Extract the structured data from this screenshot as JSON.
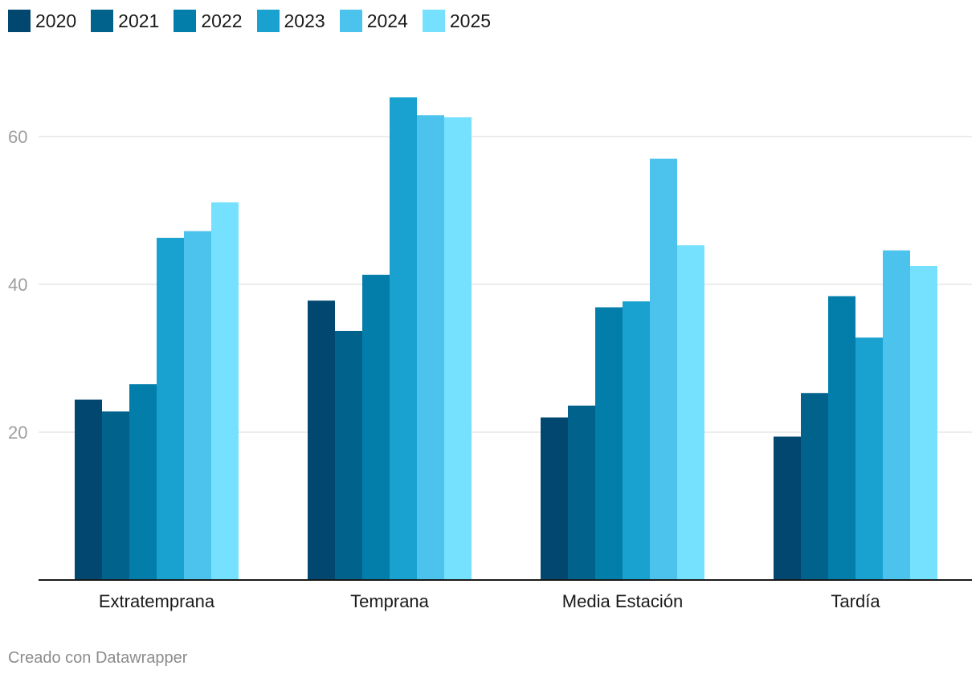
{
  "chart_data": {
    "type": "bar",
    "categories": [
      "Extratemprana",
      "Temprana",
      "Media Estación",
      "Tardía"
    ],
    "series": [
      {
        "name": "2020",
        "color": "#01476f",
        "values": [
          24.4,
          37.8,
          22.0,
          19.4
        ]
      },
      {
        "name": "2021",
        "color": "#01628c",
        "values": [
          22.8,
          33.7,
          23.6,
          25.3
        ]
      },
      {
        "name": "2022",
        "color": "#037eab",
        "values": [
          26.5,
          41.3,
          36.9,
          38.4
        ]
      },
      {
        "name": "2023",
        "color": "#19a1d0",
        "values": [
          46.3,
          65.3,
          37.7,
          32.8
        ]
      },
      {
        "name": "2024",
        "color": "#4cc3ed",
        "values": [
          47.2,
          62.9,
          57.0,
          44.6
        ]
      },
      {
        "name": "2025",
        "color": "#76e1fe",
        "values": [
          51.1,
          62.6,
          45.3,
          42.5
        ]
      }
    ],
    "yticks": [
      "20",
      "40",
      "60"
    ],
    "ytick_values": [
      20,
      40,
      60
    ],
    "ylim": [
      0,
      70
    ],
    "title": "",
    "xlabel": "",
    "ylabel": "",
    "grid": true,
    "legend": "top-left"
  },
  "credit": "Creado con Datawrapper"
}
